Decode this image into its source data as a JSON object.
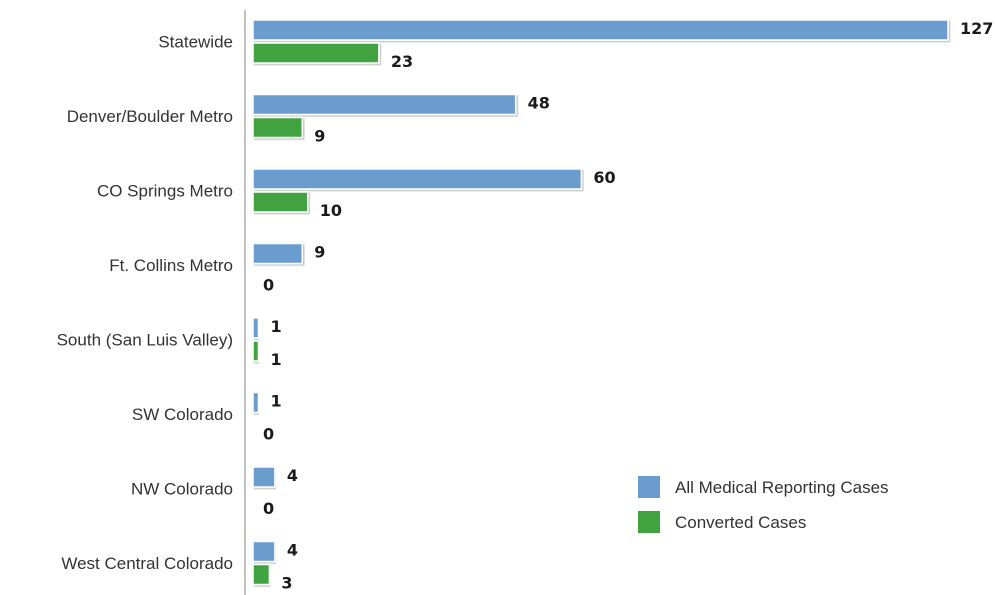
{
  "chart_data": {
    "type": "bar",
    "orientation": "horizontal",
    "categories": [
      "Statewide",
      "Denver/Boulder Metro",
      "CO Springs Metro",
      "Ft. Collins Metro",
      "South (San Luis Valley)",
      "SW Colorado",
      "NW Colorado",
      "West Central Colorado"
    ],
    "series": [
      {
        "name": "All Medical Reporting Cases",
        "color": "#6a9ccd",
        "values": [
          127,
          48,
          60,
          9,
          1,
          1,
          4,
          4
        ]
      },
      {
        "name": "Converted Cases",
        "color": "#3fa33f",
        "values": [
          23,
          9,
          10,
          0,
          1,
          0,
          0,
          3
        ]
      }
    ],
    "xlim": [
      0,
      127
    ],
    "grid": false,
    "legend_position": "bottom-right"
  }
}
